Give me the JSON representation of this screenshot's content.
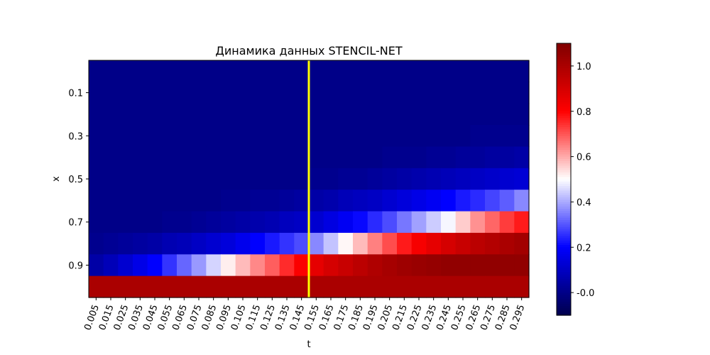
{
  "chart_data": {
    "type": "heatmap",
    "title": "Динамика данных STENCIL-NET",
    "xlabel": "t",
    "ylabel": "x",
    "x": [
      "0.005",
      "0.015",
      "0.025",
      "0.035",
      "0.045",
      "0.055",
      "0.065",
      "0.075",
      "0.085",
      "0.095",
      "0.105",
      "0.115",
      "0.125",
      "0.135",
      "0.145",
      "0.155",
      "0.165",
      "0.175",
      "0.185",
      "0.195",
      "0.205",
      "0.215",
      "0.225",
      "0.235",
      "0.245",
      "0.255",
      "0.265",
      "0.275",
      "0.285",
      "0.295"
    ],
    "y": [
      "0.0",
      "0.1",
      "0.2",
      "0.3",
      "0.4",
      "0.5",
      "0.6",
      "0.7",
      "0.8",
      "0.9",
      "1.0"
    ],
    "y_tick_labels": [
      "0.1",
      "0.3",
      "0.5",
      "0.7",
      "0.9"
    ],
    "y_axis_inverted": true,
    "values": [
      [
        0,
        0,
        0,
        0,
        0,
        0,
        0,
        0,
        0,
        0,
        0,
        0,
        0,
        0,
        0,
        0,
        0,
        0,
        0,
        0,
        0,
        0,
        0,
        0,
        0,
        0,
        0,
        0,
        0,
        0
      ],
      [
        0,
        0,
        0,
        0,
        0,
        0,
        0,
        0,
        0,
        0,
        0,
        0,
        0,
        0,
        0,
        0,
        0,
        0,
        0,
        0,
        0,
        0,
        0,
        0,
        0,
        0,
        0,
        0,
        0,
        0
      ],
      [
        0,
        0,
        0,
        0,
        0,
        0,
        0,
        0,
        0,
        0,
        0,
        0,
        0,
        0,
        0,
        0,
        0,
        0,
        0,
        0,
        0,
        0,
        0,
        0,
        0,
        0,
        0,
        0,
        0,
        0
      ],
      [
        0,
        0,
        0,
        0,
        0,
        0,
        0,
        0,
        0,
        0,
        0,
        0,
        0,
        0,
        0,
        0,
        0,
        0,
        0,
        0,
        0,
        0,
        0,
        0,
        0,
        0,
        0.01,
        0.01,
        0.01,
        0.01
      ],
      [
        0,
        0,
        0,
        0,
        0,
        0,
        0,
        0,
        0,
        0,
        0,
        0,
        0,
        0,
        0,
        0,
        0,
        0,
        0,
        0,
        0.01,
        0.01,
        0.01,
        0.02,
        0.02,
        0.03,
        0.03,
        0.04,
        0.04,
        0.05
      ],
      [
        0,
        0,
        0,
        0,
        0,
        0,
        0,
        0,
        0,
        0,
        0,
        0,
        0,
        0,
        0,
        0.01,
        0.01,
        0.02,
        0.02,
        0.03,
        0.04,
        0.05,
        0.06,
        0.07,
        0.08,
        0.09,
        0.1,
        0.11,
        0.12,
        0.13
      ],
      [
        0,
        0,
        0,
        0,
        0,
        0,
        0,
        0,
        0,
        0.01,
        0.01,
        0.02,
        0.02,
        0.03,
        0.04,
        0.05,
        0.06,
        0.08,
        0.09,
        0.1,
        0.12,
        0.14,
        0.16,
        0.18,
        0.2,
        0.23,
        0.25,
        0.28,
        0.31,
        0.36
      ],
      [
        0,
        0,
        0,
        0,
        0,
        0.01,
        0.01,
        0.02,
        0.03,
        0.04,
        0.05,
        0.06,
        0.07,
        0.09,
        0.1,
        0.12,
        0.15,
        0.18,
        0.21,
        0.25,
        0.29,
        0.34,
        0.39,
        0.44,
        0.49,
        0.56,
        0.63,
        0.68,
        0.73,
        0.77
      ],
      [
        0.01,
        0.02,
        0.03,
        0.04,
        0.05,
        0.07,
        0.08,
        0.1,
        0.12,
        0.14,
        0.17,
        0.2,
        0.23,
        0.26,
        0.29,
        0.36,
        0.43,
        0.51,
        0.58,
        0.65,
        0.71,
        0.77,
        0.82,
        0.86,
        0.9,
        0.93,
        0.96,
        0.98,
        1.0,
        1.02
      ],
      [
        0.05,
        0.08,
        0.12,
        0.16,
        0.2,
        0.26,
        0.32,
        0.38,
        0.45,
        0.52,
        0.58,
        0.64,
        0.69,
        0.75,
        0.81,
        0.86,
        0.9,
        0.93,
        0.96,
        0.99,
        1.01,
        1.03,
        1.04,
        1.05,
        1.06,
        1.06,
        1.06,
        1.06,
        1.06,
        1.06
      ],
      [
        1.0,
        1.0,
        1.0,
        1.0,
        1.0,
        1.0,
        1.0,
        1.0,
        1.0,
        1.0,
        1.0,
        1.0,
        1.0,
        1.0,
        1.0,
        1.0,
        1.0,
        1.0,
        1.0,
        1.0,
        1.0,
        1.0,
        1.0,
        1.0,
        1.0,
        1.0,
        1.0,
        1.0,
        1.0,
        1.0
      ]
    ],
    "colormap": "seismic",
    "vmin": -0.1,
    "vmax": 1.1,
    "colorbar_ticks": [
      "-0.0",
      "0.2",
      "0.4",
      "0.6",
      "0.8",
      "1.0"
    ],
    "colorbar_tick_values": [
      0.0,
      0.2,
      0.4,
      0.6,
      0.8,
      1.0
    ],
    "marker_line": {
      "x": 0.15,
      "color": "#ffff00"
    },
    "grid": false
  }
}
